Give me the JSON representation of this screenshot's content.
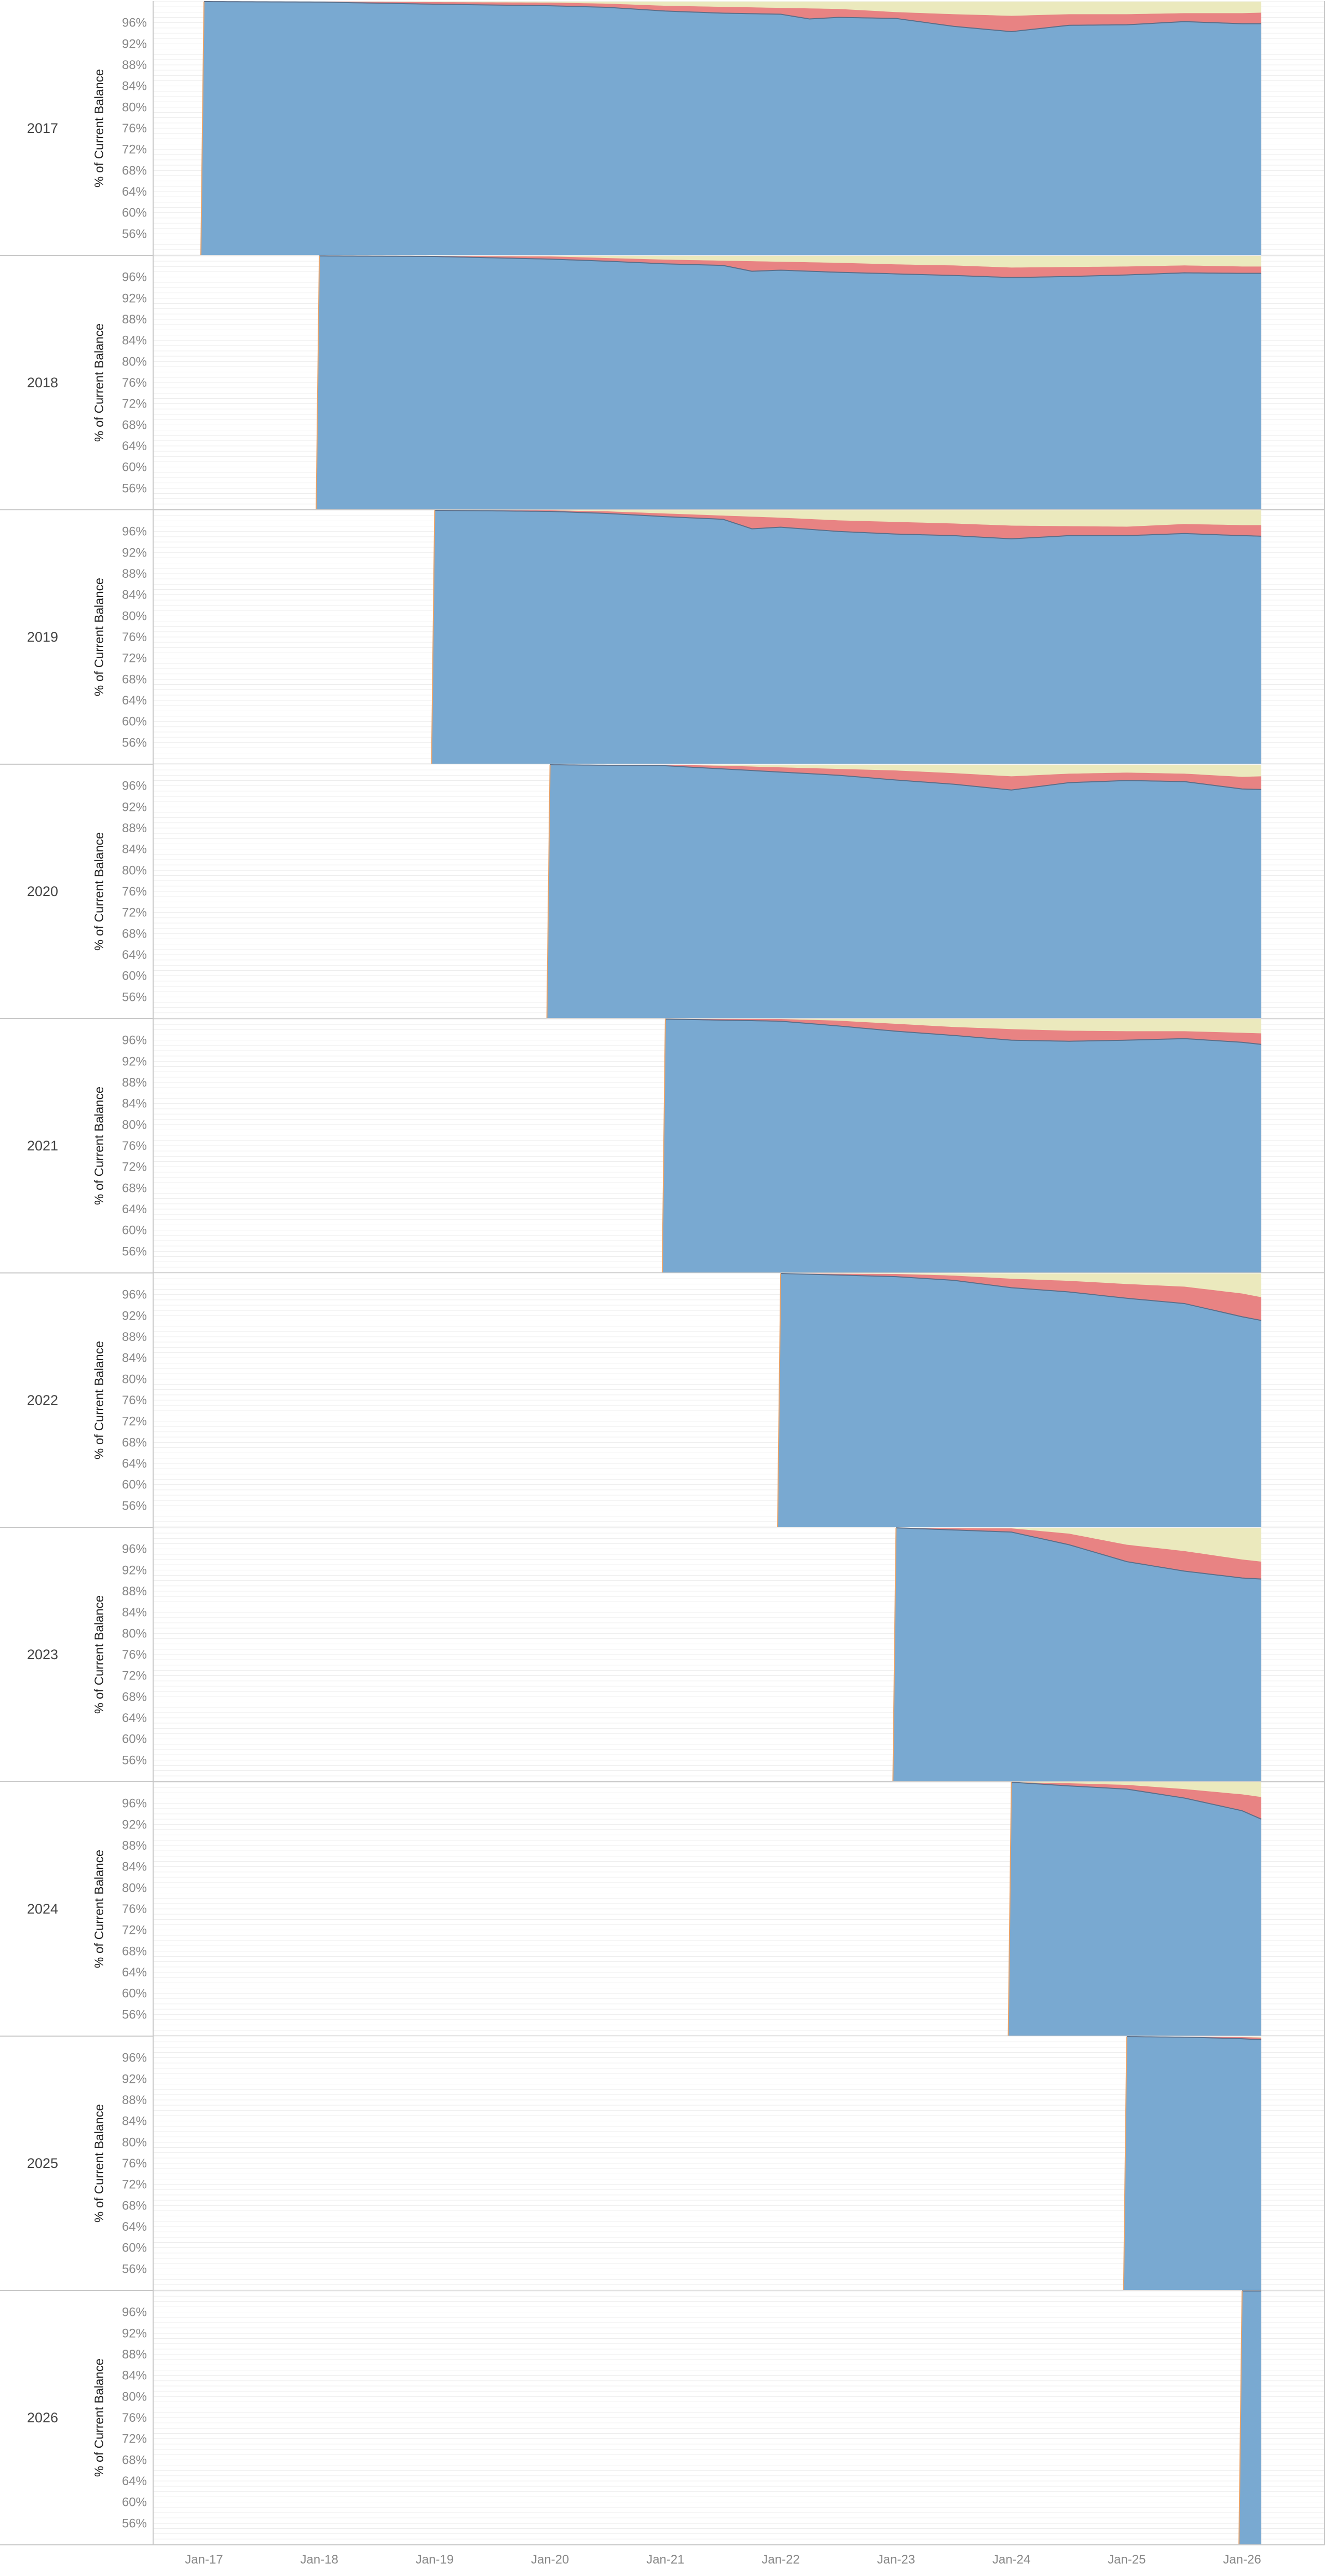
{
  "chart_data": {
    "type": "area",
    "chart_kind": "stacked area (small multiples by vintage year)",
    "y_axis_label": "% of Current Balance",
    "y_tick_labels": [
      "96%",
      "92%",
      "88%",
      "84%",
      "80%",
      "76%",
      "72%",
      "68%",
      "64%",
      "60%",
      "56%"
    ],
    "y_range_percent": [
      52,
      100
    ],
    "y_gridlines_every_percent": 1,
    "x_tick_labels": [
      "Jan-17",
      "Jan-18",
      "Jan-19",
      "Jan-20",
      "Jan-21",
      "Jan-22",
      "Jan-23",
      "Jan-24",
      "Jan-25",
      "Jan-26"
    ],
    "x_range": [
      "2016-07",
      "2026-04"
    ],
    "grid": true,
    "legend": "none",
    "series_colors": {
      "bottom_band": "#79a9d1",
      "middle_band": "#e88383",
      "top_band": "#ebe9bd",
      "frame": "#c8c8c8"
    },
    "panels": [
      {
        "label": "2017",
        "start": "2017-01",
        "bottom_pct": [
          [
            "2017-01",
            100
          ],
          [
            "2018-01",
            99.9
          ],
          [
            "2019-01",
            99.5
          ],
          [
            "2020-01",
            99.2
          ],
          [
            "2020-07",
            98.9
          ],
          [
            "2021-01",
            98.2
          ],
          [
            "2021-07",
            97.8
          ],
          [
            "2022-01",
            97.6
          ],
          [
            "2022-04",
            96.7
          ],
          [
            "2022-07",
            97.0
          ],
          [
            "2023-01",
            96.8
          ],
          [
            "2023-07",
            95.3
          ],
          [
            "2024-01",
            94.3
          ],
          [
            "2024-07",
            95.5
          ],
          [
            "2025-01",
            95.6
          ],
          [
            "2025-07",
            96.2
          ],
          [
            "2026-01",
            95.8
          ],
          [
            "2026-03",
            95.8
          ]
        ],
        "middle_top_pct": [
          [
            "2017-01",
            100
          ],
          [
            "2018-01",
            100
          ],
          [
            "2019-01",
            99.9
          ],
          [
            "2020-01",
            99.8
          ],
          [
            "2020-07",
            99.6
          ],
          [
            "2021-01",
            99.2
          ],
          [
            "2021-07",
            99.0
          ],
          [
            "2022-01",
            98.8
          ],
          [
            "2022-07",
            98.6
          ],
          [
            "2023-01",
            98.0
          ],
          [
            "2023-07",
            97.6
          ],
          [
            "2024-01",
            97.3
          ],
          [
            "2024-07",
            97.6
          ],
          [
            "2025-01",
            97.6
          ],
          [
            "2025-07",
            97.8
          ],
          [
            "2026-01",
            97.8
          ],
          [
            "2026-03",
            97.9
          ]
        ]
      },
      {
        "label": "2018",
        "start": "2018-01",
        "bottom_pct": [
          [
            "2018-01",
            100
          ],
          [
            "2019-01",
            99.9
          ],
          [
            "2020-01",
            99.4
          ],
          [
            "2020-07",
            99.0
          ],
          [
            "2021-01",
            98.5
          ],
          [
            "2021-07",
            98.2
          ],
          [
            "2021-10",
            97.1
          ],
          [
            "2022-01",
            97.3
          ],
          [
            "2022-07",
            96.9
          ],
          [
            "2023-01",
            96.6
          ],
          [
            "2023-07",
            96.3
          ],
          [
            "2024-01",
            95.9
          ],
          [
            "2024-07",
            96.1
          ],
          [
            "2025-01",
            96.4
          ],
          [
            "2025-07",
            96.8
          ],
          [
            "2026-01",
            96.7
          ],
          [
            "2026-03",
            96.7
          ]
        ],
        "middle_top_pct": [
          [
            "2018-01",
            100
          ],
          [
            "2019-01",
            100
          ],
          [
            "2020-01",
            99.9
          ],
          [
            "2020-07",
            99.6
          ],
          [
            "2021-01",
            99.3
          ],
          [
            "2021-07",
            99.1
          ],
          [
            "2022-01",
            98.9
          ],
          [
            "2022-07",
            98.7
          ],
          [
            "2023-01",
            98.4
          ],
          [
            "2023-07",
            98.2
          ],
          [
            "2024-01",
            97.8
          ],
          [
            "2024-07",
            97.9
          ],
          [
            "2025-01",
            98.0
          ],
          [
            "2025-07",
            98.2
          ],
          [
            "2026-01",
            98.0
          ],
          [
            "2026-03",
            98.0
          ]
        ]
      },
      {
        "label": "2019",
        "start": "2019-01",
        "bottom_pct": [
          [
            "2019-01",
            100
          ],
          [
            "2020-01",
            99.8
          ],
          [
            "2020-07",
            99.4
          ],
          [
            "2021-01",
            98.8
          ],
          [
            "2021-07",
            98.3
          ],
          [
            "2021-10",
            96.5
          ],
          [
            "2022-01",
            96.8
          ],
          [
            "2022-07",
            96.0
          ],
          [
            "2023-01",
            95.5
          ],
          [
            "2023-07",
            95.2
          ],
          [
            "2024-01",
            94.6
          ],
          [
            "2024-07",
            95.2
          ],
          [
            "2025-01",
            95.2
          ],
          [
            "2025-07",
            95.6
          ],
          [
            "2026-01",
            95.2
          ],
          [
            "2026-03",
            95.1
          ]
        ],
        "middle_top_pct": [
          [
            "2019-01",
            100
          ],
          [
            "2020-01",
            100
          ],
          [
            "2020-07",
            99.8
          ],
          [
            "2021-01",
            99.4
          ],
          [
            "2021-07",
            99.0
          ],
          [
            "2022-01",
            98.6
          ],
          [
            "2022-07",
            98.1
          ],
          [
            "2023-01",
            97.8
          ],
          [
            "2023-07",
            97.5
          ],
          [
            "2024-01",
            97.1
          ],
          [
            "2024-07",
            97.0
          ],
          [
            "2025-01",
            96.9
          ],
          [
            "2025-07",
            97.4
          ],
          [
            "2026-01",
            97.2
          ],
          [
            "2026-03",
            97.2
          ]
        ]
      },
      {
        "label": "2020",
        "start": "2020-01",
        "bottom_pct": [
          [
            "2020-01",
            100
          ],
          [
            "2021-01",
            99.8
          ],
          [
            "2021-07",
            99.2
          ],
          [
            "2022-01",
            98.6
          ],
          [
            "2022-07",
            98.0
          ],
          [
            "2023-01",
            97.1
          ],
          [
            "2023-07",
            96.3
          ],
          [
            "2024-01",
            95.2
          ],
          [
            "2024-07",
            96.6
          ],
          [
            "2025-01",
            97.0
          ],
          [
            "2025-07",
            96.8
          ],
          [
            "2026-01",
            95.4
          ],
          [
            "2026-03",
            95.3
          ]
        ],
        "middle_top_pct": [
          [
            "2020-01",
            100
          ],
          [
            "2021-01",
            100
          ],
          [
            "2021-07",
            99.8
          ],
          [
            "2022-01",
            99.5
          ],
          [
            "2022-07",
            99.2
          ],
          [
            "2023-01",
            98.9
          ],
          [
            "2023-07",
            98.4
          ],
          [
            "2024-01",
            97.8
          ],
          [
            "2024-07",
            98.3
          ],
          [
            "2025-01",
            98.5
          ],
          [
            "2025-07",
            98.3
          ],
          [
            "2026-01",
            97.7
          ],
          [
            "2026-03",
            97.8
          ]
        ]
      },
      {
        "label": "2021",
        "start": "2021-01",
        "bottom_pct": [
          [
            "2021-01",
            100
          ],
          [
            "2022-01",
            99.6
          ],
          [
            "2022-07",
            98.7
          ],
          [
            "2023-01",
            97.7
          ],
          [
            "2023-07",
            96.9
          ],
          [
            "2024-01",
            96.0
          ],
          [
            "2024-07",
            95.8
          ],
          [
            "2025-01",
            96.0
          ],
          [
            "2025-07",
            96.3
          ],
          [
            "2026-01",
            95.6
          ],
          [
            "2026-03",
            95.2
          ]
        ],
        "middle_top_pct": [
          [
            "2021-01",
            100
          ],
          [
            "2022-01",
            100
          ],
          [
            "2022-07",
            99.7
          ],
          [
            "2023-01",
            99.1
          ],
          [
            "2023-07",
            98.5
          ],
          [
            "2024-01",
            98.1
          ],
          [
            "2024-07",
            97.8
          ],
          [
            "2025-01",
            97.7
          ],
          [
            "2025-07",
            97.7
          ],
          [
            "2026-01",
            97.4
          ],
          [
            "2026-03",
            97.3
          ]
        ]
      },
      {
        "label": "2022",
        "start": "2022-01",
        "bottom_pct": [
          [
            "2022-01",
            100
          ],
          [
            "2023-01",
            99.4
          ],
          [
            "2023-07",
            98.7
          ],
          [
            "2024-01",
            97.3
          ],
          [
            "2024-07",
            96.5
          ],
          [
            "2025-01",
            95.3
          ],
          [
            "2025-07",
            94.3
          ],
          [
            "2026-01",
            91.8
          ],
          [
            "2026-03",
            91.1
          ]
        ],
        "middle_top_pct": [
          [
            "2022-01",
            100
          ],
          [
            "2023-01",
            99.9
          ],
          [
            "2023-07",
            99.6
          ],
          [
            "2024-01",
            99.0
          ],
          [
            "2024-07",
            98.6
          ],
          [
            "2025-01",
            98.0
          ],
          [
            "2025-07",
            97.5
          ],
          [
            "2026-01",
            96.2
          ],
          [
            "2026-03",
            95.5
          ]
        ]
      },
      {
        "label": "2023",
        "start": "2023-01",
        "bottom_pct": [
          [
            "2023-01",
            100
          ],
          [
            "2024-01",
            99.2
          ],
          [
            "2024-07",
            96.8
          ],
          [
            "2025-01",
            93.6
          ],
          [
            "2025-07",
            91.8
          ],
          [
            "2026-01",
            90.5
          ],
          [
            "2026-03",
            90.3
          ]
        ],
        "middle_top_pct": [
          [
            "2023-01",
            100
          ],
          [
            "2024-01",
            99.9
          ],
          [
            "2024-07",
            98.9
          ],
          [
            "2025-01",
            96.8
          ],
          [
            "2025-07",
            95.6
          ],
          [
            "2026-01",
            94.0
          ],
          [
            "2026-03",
            93.6
          ]
        ]
      },
      {
        "label": "2024",
        "start": "2024-01",
        "bottom_pct": [
          [
            "2024-01",
            100
          ],
          [
            "2024-07",
            99.3
          ],
          [
            "2025-01",
            98.7
          ],
          [
            "2025-07",
            97.0
          ],
          [
            "2026-01",
            94.6
          ],
          [
            "2026-03",
            93.0
          ]
        ],
        "middle_top_pct": [
          [
            "2024-01",
            100
          ],
          [
            "2024-07",
            99.8
          ],
          [
            "2025-01",
            99.5
          ],
          [
            "2025-07",
            98.7
          ],
          [
            "2026-01",
            97.7
          ],
          [
            "2026-03",
            97.2
          ]
        ]
      },
      {
        "label": "2025",
        "start": "2025-01",
        "bottom_pct": [
          [
            "2025-01",
            100
          ],
          [
            "2025-07",
            99.9
          ],
          [
            "2026-01",
            99.6
          ],
          [
            "2026-03",
            99.4
          ]
        ],
        "middle_top_pct": [
          [
            "2025-01",
            100
          ],
          [
            "2025-07",
            100
          ],
          [
            "2026-01",
            99.9
          ],
          [
            "2026-03",
            99.8
          ]
        ]
      },
      {
        "label": "2026",
        "start": "2026-01",
        "bottom_pct": [
          [
            "2026-01",
            100
          ],
          [
            "2026-03",
            100
          ]
        ],
        "middle_top_pct": [
          [
            "2026-01",
            100
          ],
          [
            "2026-03",
            100
          ]
        ]
      }
    ]
  }
}
